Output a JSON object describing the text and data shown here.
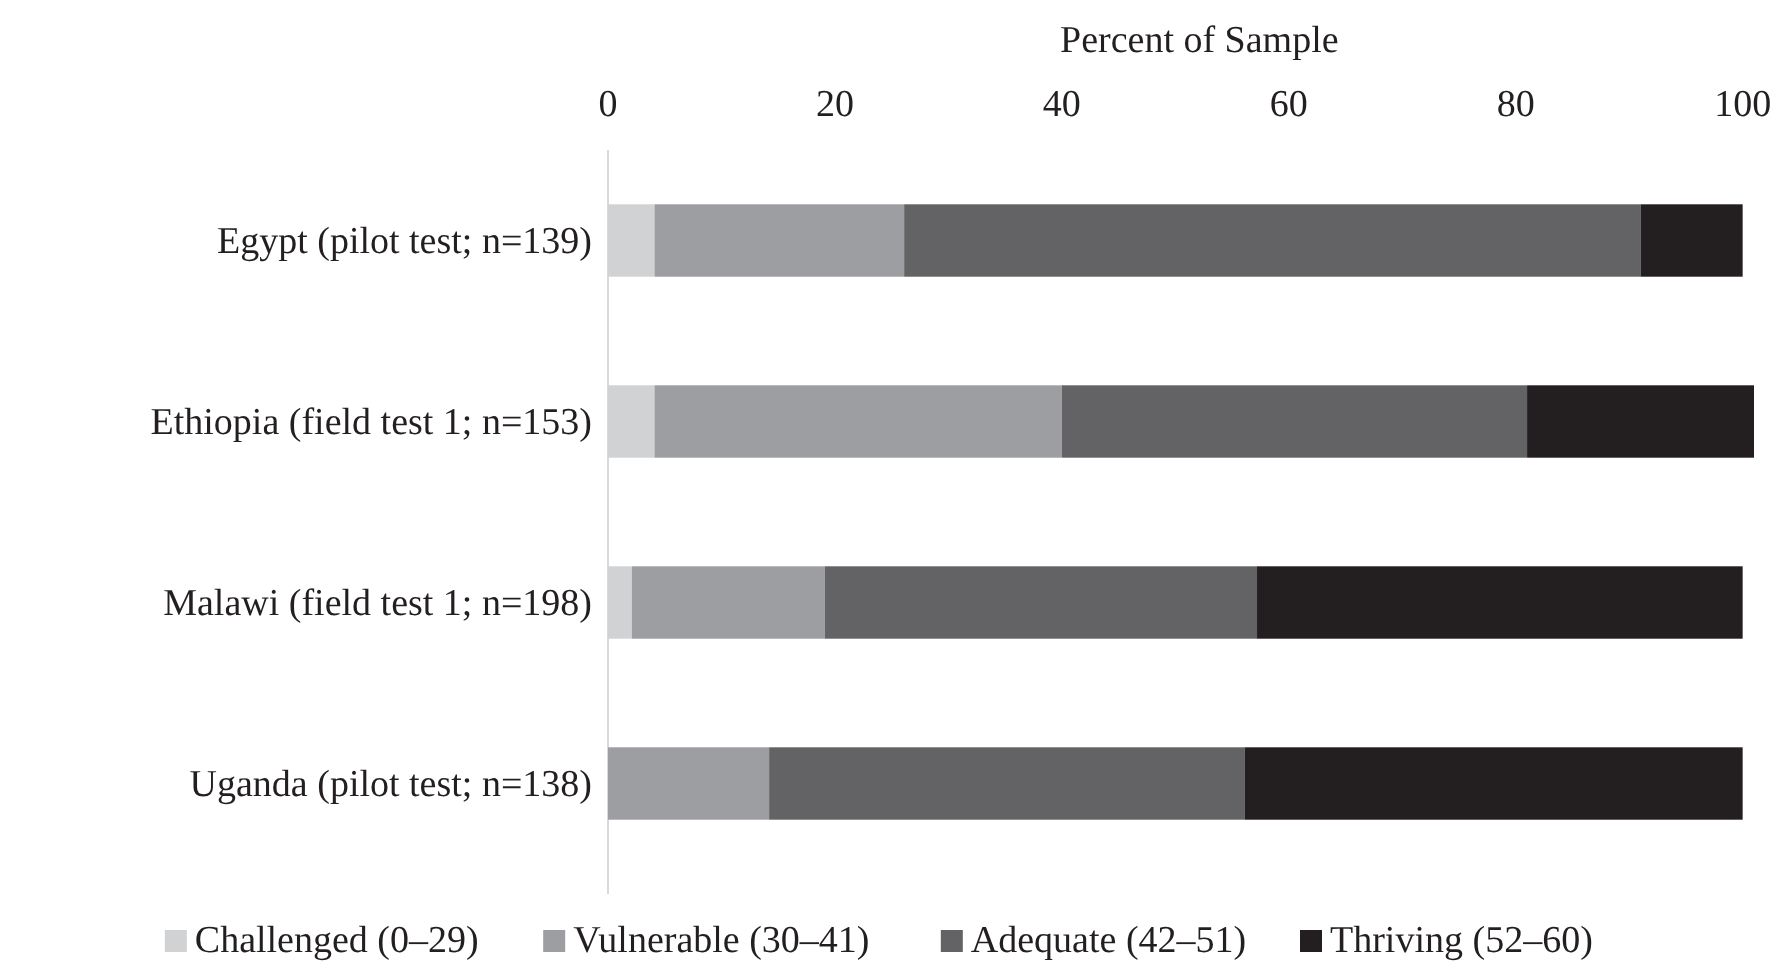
{
  "chart_data": {
    "type": "bar",
    "orientation": "horizontal",
    "stacked": true,
    "xlabel": "Percent of Sample",
    "categories": [
      "Egypt (pilot test; n=139)",
      "Ethiopia (field test 1; n=153)",
      "Malawi (field test 1; n=198)",
      "Uganda (pilot test; n=138)"
    ],
    "series": [
      {
        "name": "Challenged (0–29)",
        "color": "#d1d2d4",
        "values": [
          4.1,
          4.1,
          2.1,
          0
        ]
      },
      {
        "name": "Vulnerable (30–41)",
        "color": "#9d9ea2",
        "values": [
          22,
          35.9,
          17,
          14.2
        ]
      },
      {
        "name": "Adequate (42–51)",
        "color": "#636365",
        "values": [
          64.9,
          41,
          38.1,
          41.9
        ]
      },
      {
        "name": "Thriving (52–60)",
        "color": "#231f20",
        "values": [
          9,
          20,
          42.8,
          43.9
        ]
      }
    ],
    "xlim": [
      0,
      101
    ],
    "xticks": [
      0,
      20,
      40,
      60,
      80,
      100
    ],
    "grid": false,
    "legend": "bottom"
  }
}
